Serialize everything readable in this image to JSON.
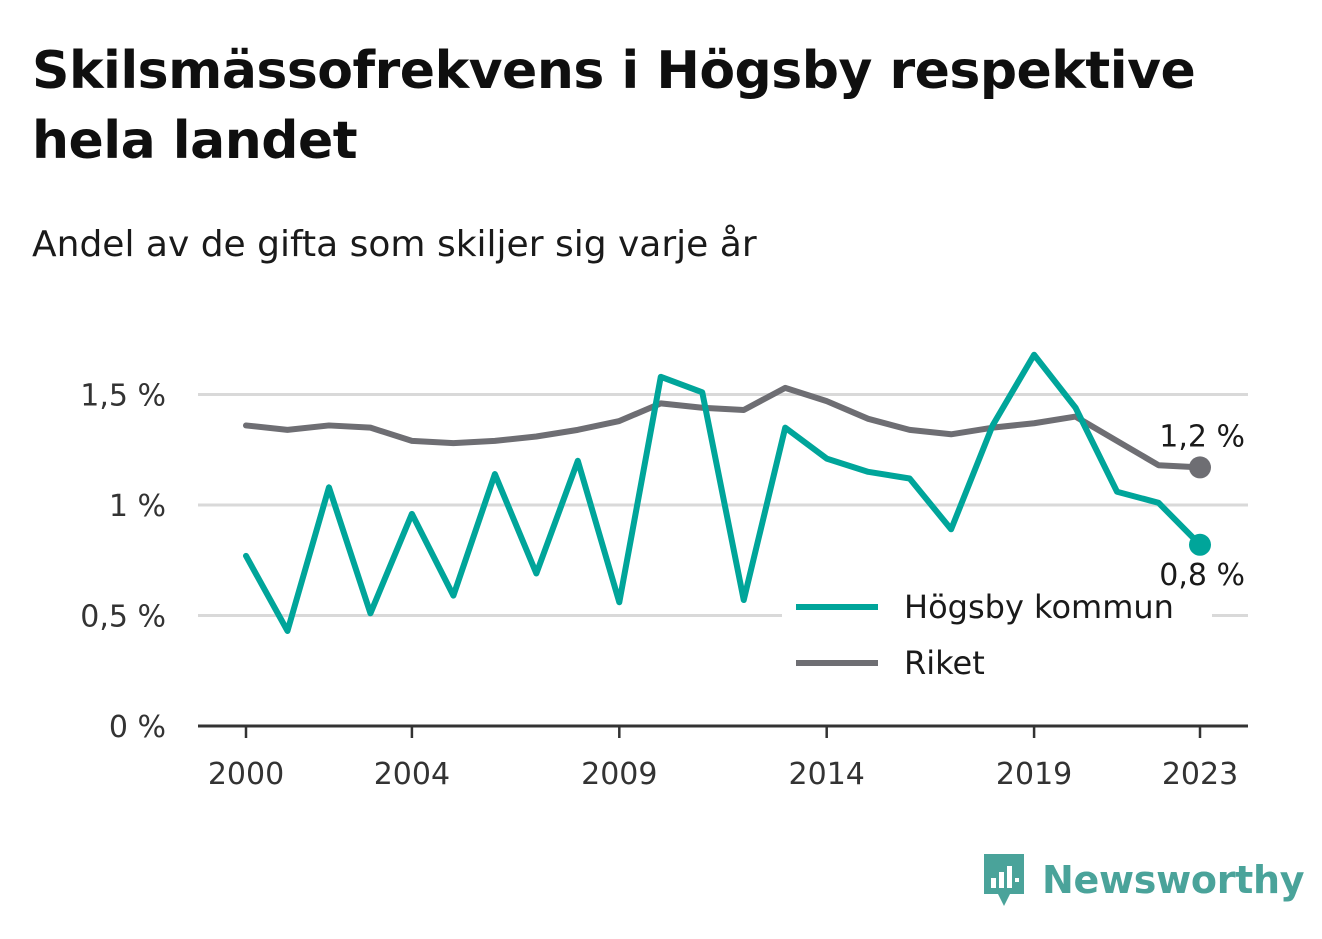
{
  "title": "Skilsmässofrekvens i Högsby respektive hela landet",
  "subtitle": "Andel av de gifta som skiljer sig varje år",
  "brand": {
    "name": "Newsworthy",
    "icon": "newsworthy-logo-icon",
    "color": "#4aa39a"
  },
  "colors": {
    "hogsby": "#00a59a",
    "riket": "#6e6e73",
    "grid": "#d9d9d9",
    "axis": "#333333"
  },
  "chart_data": {
    "type": "line",
    "title": "Skilsmässofrekvens i Högsby respektive hela landet",
    "subtitle": "Andel av de gifta som skiljer sig varje år",
    "x": [
      2000,
      2001,
      2002,
      2003,
      2004,
      2005,
      2006,
      2007,
      2008,
      2009,
      2010,
      2011,
      2012,
      2013,
      2014,
      2015,
      2016,
      2017,
      2018,
      2019,
      2020,
      2021,
      2022,
      2023
    ],
    "x_ticks": [
      2000,
      2004,
      2009,
      2014,
      2019,
      2023
    ],
    "y_ticks": [
      0,
      0.5,
      1,
      1.5
    ],
    "y_tick_labels": [
      "0 %",
      "0,5 %",
      "1 %",
      "1,5 %"
    ],
    "ylim": [
      0,
      1.72
    ],
    "grid": true,
    "legend_position": "bottom-right",
    "series": [
      {
        "name": "Högsby kommun",
        "color": "#00a59a",
        "values": [
          0.77,
          0.43,
          1.08,
          0.51,
          0.96,
          0.59,
          1.14,
          0.69,
          1.2,
          0.56,
          1.58,
          1.51,
          0.57,
          1.35,
          1.21,
          1.15,
          1.12,
          0.89,
          1.36,
          1.68,
          1.44,
          1.06,
          1.01,
          0.82
        ],
        "end_label": "0,8 %"
      },
      {
        "name": "Riket",
        "color": "#6e6e73",
        "values": [
          1.36,
          1.34,
          1.36,
          1.35,
          1.29,
          1.28,
          1.29,
          1.31,
          1.34,
          1.38,
          1.46,
          1.44,
          1.43,
          1.53,
          1.47,
          1.39,
          1.34,
          1.32,
          1.35,
          1.37,
          1.4,
          1.29,
          1.18,
          1.17
        ],
        "end_label": "1,2 %"
      }
    ]
  }
}
